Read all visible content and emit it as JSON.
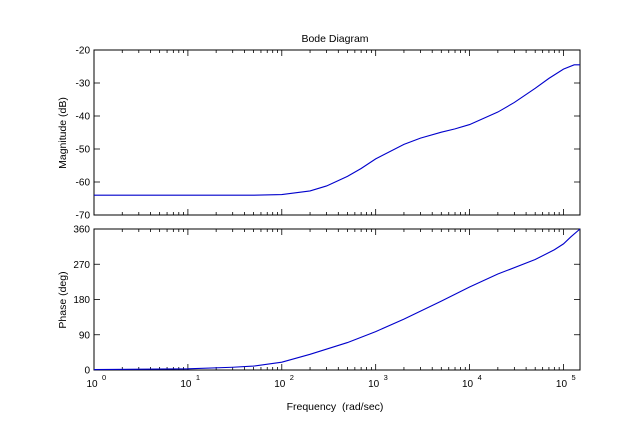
{
  "chart_data": [
    {
      "type": "line",
      "title": "Bode Diagram",
      "ylabel": "Magnitude (dB)",
      "xscale": "log",
      "xlim": [
        1,
        150000
      ],
      "ylim": [
        -70,
        -20
      ],
      "yticks": [
        -70,
        -60,
        -50,
        -40,
        -30,
        -20
      ],
      "grid": false,
      "line_color": "#0000cc",
      "series": [
        {
          "x": [
            1,
            10,
            50,
            100,
            200,
            300,
            500,
            700,
            1000,
            2000,
            3000,
            5000,
            7000,
            10000,
            20000,
            30000,
            50000,
            70000,
            100000,
            130000,
            150000
          ],
          "y": [
            -64,
            -64,
            -64,
            -63.8,
            -62.7,
            -61.2,
            -58.3,
            -55.9,
            -53,
            -48.6,
            -46.7,
            -44.9,
            -43.9,
            -42.6,
            -38.8,
            -35.9,
            -31.6,
            -28.6,
            -25.8,
            -24.5,
            -24.5
          ]
        }
      ]
    },
    {
      "type": "line",
      "ylabel": "Phase (deg)",
      "xlabel": "Frequency  (rad/sec)",
      "xscale": "log",
      "xlim": [
        1,
        150000
      ],
      "ylim": [
        0,
        360
      ],
      "yticks": [
        0,
        90,
        180,
        270,
        360
      ],
      "xticks": [
        {
          "base": "10",
          "exp": "0"
        },
        {
          "base": "10",
          "exp": "1"
        },
        {
          "base": "10",
          "exp": "2"
        },
        {
          "base": "10",
          "exp": "3"
        },
        {
          "base": "10",
          "exp": "4"
        },
        {
          "base": "10",
          "exp": "5"
        }
      ],
      "grid": false,
      "line_color": "#0000cc",
      "series": [
        {
          "x": [
            1,
            10,
            30,
            50,
            100,
            200,
            500,
            1000,
            2000,
            5000,
            10000,
            20000,
            50000,
            80000,
            100000,
            120000,
            150000
          ],
          "y": [
            1,
            3,
            7,
            10,
            20,
            40,
            70,
            98,
            130,
            176,
            212,
            245,
            282,
            307,
            322,
            340,
            360
          ]
        }
      ]
    }
  ]
}
